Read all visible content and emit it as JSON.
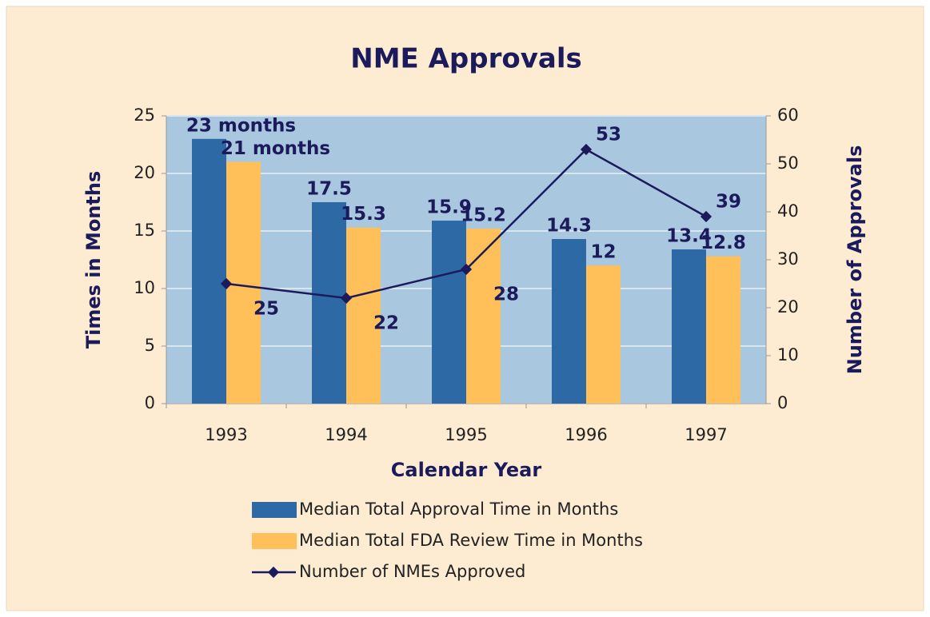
{
  "chart_data": {
    "type": "bar",
    "title": "NME Approvals",
    "x_label": "Calendar Year",
    "y_label": "Times in Months",
    "y2_label": "Number of Approvals",
    "categories": [
      "1993",
      "1994",
      "1995",
      "1996",
      "1997"
    ],
    "series": [
      {
        "name": "Median Total Approval Time in Months",
        "color": "#2d6aa5",
        "type": "bar",
        "values": [
          23,
          17.5,
          15.9,
          14.3,
          13.4
        ],
        "value_labels": [
          "23 months",
          "17.5",
          "15.9",
          "14.3",
          "13.4"
        ]
      },
      {
        "name": "Median Total FDA Review Time in Months",
        "color": "#ffbf59",
        "type": "bar",
        "values": [
          21,
          15.3,
          15.2,
          12,
          12.8
        ],
        "value_labels": [
          "21 months",
          "15.3",
          "15.2",
          "12",
          "12.8"
        ]
      },
      {
        "name": "Number of NMEs Approved",
        "color": "#1b1b5c",
        "type": "line",
        "axis": "y2",
        "values": [
          25,
          22,
          28,
          53,
          39
        ]
      }
    ],
    "ylim": [
      0,
      25
    ],
    "yticks": [
      0,
      5,
      10,
      15,
      20,
      25
    ],
    "y2lim": [
      0,
      60
    ],
    "y2ticks": [
      0,
      10,
      20,
      30,
      40,
      50,
      60
    ],
    "grid": true
  }
}
